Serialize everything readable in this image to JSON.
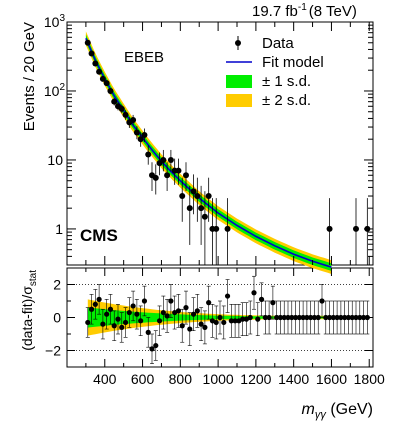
{
  "header": {
    "lumi_label": "19.7 fb",
    "lumi_exp": "-1",
    "energy_label": "(8 TeV)"
  },
  "category_label": "EBEB",
  "experiment_label": "CMS",
  "legend": [
    {
      "label": "Data",
      "kind": "marker",
      "color": "#000000"
    },
    {
      "label": "Fit model",
      "kind": "line",
      "color": "#0000cc"
    },
    {
      "label": "± 1 s.d.",
      "kind": "box",
      "color": "#00ee00"
    },
    {
      "label": "± 2 s.d.",
      "kind": "box",
      "color": "#ffcc00"
    }
  ],
  "chart_data": [
    {
      "type": "scatter",
      "panel": "main",
      "ylabel": "Events / 20 GeV",
      "yscale": "log",
      "ylim": [
        0.3,
        1000
      ],
      "xlim": [
        200,
        1820
      ],
      "y_ticks": [
        {
          "value": 1000,
          "label": "10",
          "exp": "3"
        },
        {
          "value": 100,
          "label": "10",
          "exp": "2"
        },
        {
          "value": 10,
          "label": "10",
          "exp": ""
        },
        {
          "value": 1,
          "label": "1",
          "exp": ""
        }
      ],
      "series": [
        {
          "name": "Data",
          "x": [
            310,
            330,
            350,
            370,
            390,
            410,
            430,
            450,
            470,
            490,
            510,
            530,
            550,
            570,
            590,
            610,
            630,
            650,
            670,
            690,
            710,
            730,
            750,
            770,
            790,
            810,
            830,
            850,
            870,
            890,
            910,
            930,
            950,
            970,
            990,
            1050,
            1590,
            1730,
            1790
          ],
          "y": [
            500,
            350,
            250,
            190,
            150,
            130,
            100,
            70,
            60,
            55,
            45,
            35,
            38,
            25,
            20,
            23,
            12,
            6,
            5.5,
            9,
            10,
            6,
            10,
            7,
            7,
            3,
            6,
            2,
            3.5,
            3,
            2,
            1.5,
            3,
            1,
            1,
            1,
            1,
            1,
            1
          ]
        },
        {
          "name": "Fit model",
          "x": [
            300,
            350,
            400,
            450,
            500,
            550,
            600,
            650,
            700,
            750,
            800,
            900,
            1000,
            1100,
            1200,
            1300,
            1400,
            1500,
            1600
          ],
          "y": [
            580,
            280,
            150,
            85,
            52,
            32,
            21,
            14,
            9.6,
            6.8,
            5,
            2.8,
            1.7,
            1.12,
            0.78,
            0.57,
            0.43,
            0.34,
            0.28
          ]
        }
      ]
    },
    {
      "type": "scatter",
      "panel": "ratio",
      "ylabel": "(data-fit)/σ",
      "ylabel_sub": "stat",
      "xlabel": "m",
      "xlabel_sub": "γγ",
      "xlabel_unit": " (GeV)",
      "ylim": [
        -3,
        3
      ],
      "xlim": [
        200,
        1820
      ],
      "x_ticks": [
        400,
        600,
        800,
        1000,
        1200,
        1400,
        1600,
        1800
      ],
      "y_ticks": [
        -2,
        0,
        2
      ],
      "reference_lines": [
        -2,
        2
      ],
      "series": [
        {
          "name": "",
          "x": [
            310,
            330,
            350,
            370,
            390,
            410,
            430,
            450,
            470,
            490,
            510,
            530,
            550,
            570,
            590,
            610,
            630,
            650,
            670,
            690,
            710,
            730,
            750,
            770,
            790,
            810,
            830,
            850,
            870,
            890,
            910,
            930,
            950,
            970,
            990,
            1010,
            1030,
            1050,
            1070,
            1090,
            1110,
            1130,
            1150,
            1170,
            1190,
            1210,
            1230,
            1250,
            1270,
            1290,
            1310,
            1330,
            1350,
            1370,
            1390,
            1410,
            1430,
            1450,
            1470,
            1490,
            1510,
            1530,
            1550,
            1570,
            1590,
            1610,
            1630,
            1650,
            1670,
            1690,
            1710,
            1730,
            1750,
            1770,
            1790
          ],
          "y": [
            -0.3,
            0.5,
            0.8,
            1.1,
            -0.4,
            0.2,
            0.5,
            -0.5,
            -0.1,
            -0.6,
            -0.3,
            0.3,
            0.7,
            0.2,
            -0.2,
            1.0,
            -0.9,
            -1.9,
            -1.7,
            -0.2,
            0.3,
            0.1,
            1.0,
            0.3,
            0.4,
            -0.5,
            0.6,
            -0.7,
            0.2,
            0.4,
            -0.4,
            -0.6,
            0.9,
            -0.2,
            -0.3,
            0.0,
            -0.3,
            1.3,
            -0.2,
            -0.2,
            -0.2,
            -0.1,
            -0.1,
            0.0,
            1.5,
            -0.1,
            1.1,
            0.0,
            0.0,
            0.9,
            0.0,
            0.0,
            0.0,
            0.0,
            0.0,
            0.0,
            0.0,
            0.0,
            0.0,
            0.0,
            0.0,
            0.0,
            1.0,
            0.0,
            0.0,
            0.0,
            0.0,
            0.0,
            0.0,
            0.0,
            0.0,
            0.0,
            0.0,
            0.0,
            0.0
          ]
        }
      ]
    }
  ]
}
